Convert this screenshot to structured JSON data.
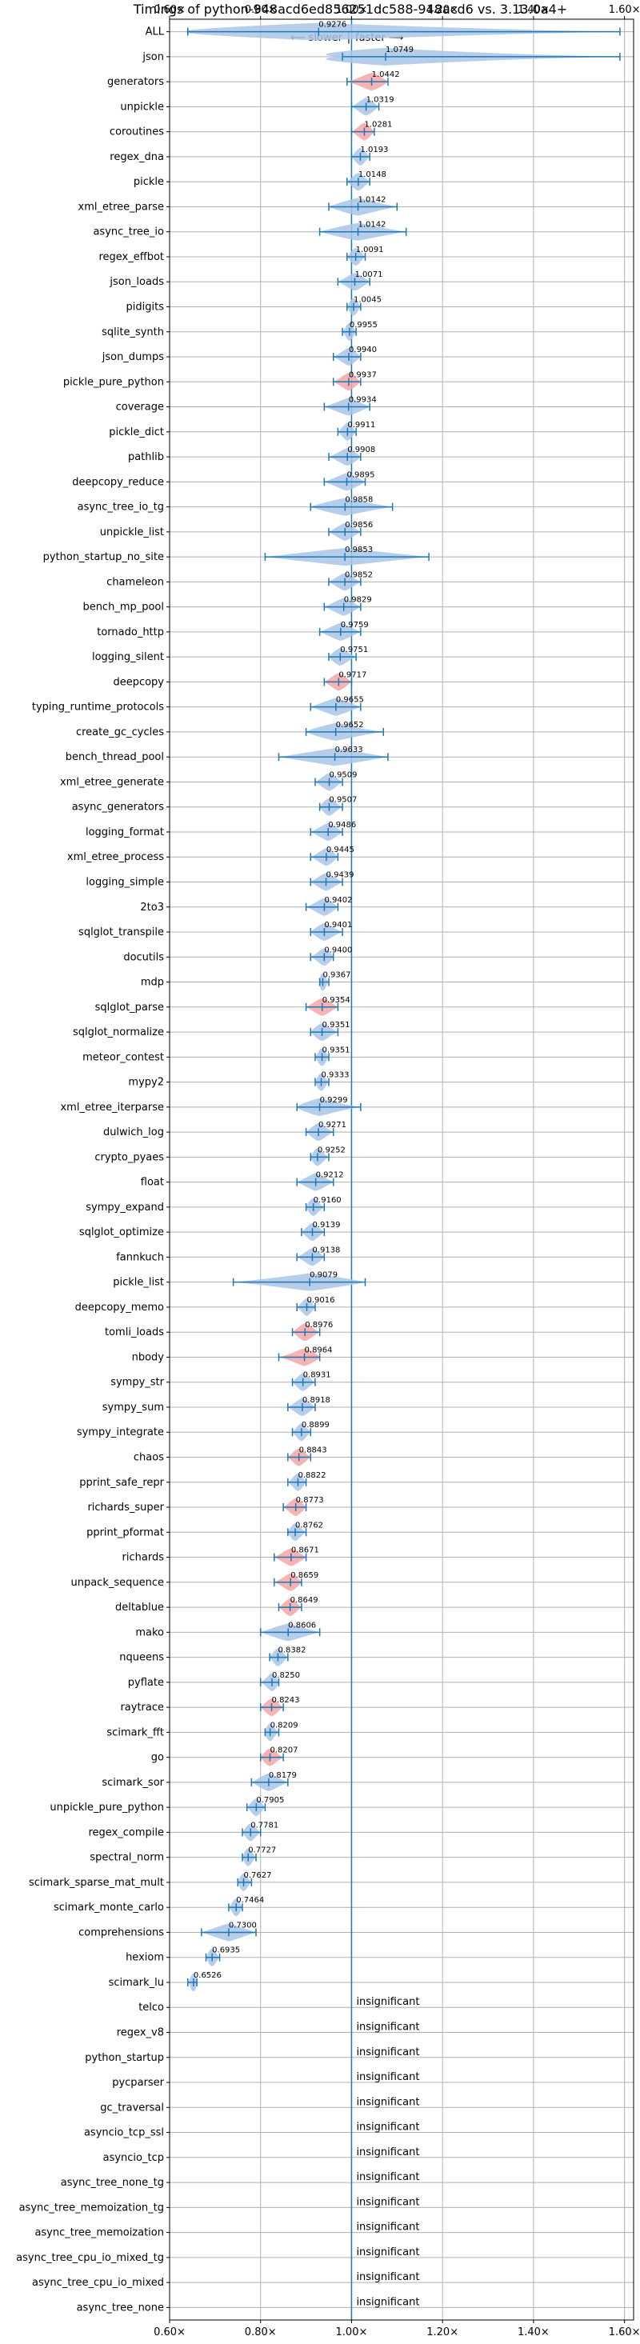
{
  "chart_data": {
    "type": "violin",
    "title": "Timings of python-948acd6ed856251dc588-948acd6 vs. 3.13.0a4+",
    "direction_annotation": {
      "slower": "⟵ slower",
      "faster": "faster ⟶",
      "separator": "|"
    },
    "xlim": [
      0.6,
      1.62
    ],
    "x_ticks": [
      {
        "value": 0.6,
        "label": "0.60×"
      },
      {
        "value": 0.8,
        "label": "0.80×"
      },
      {
        "value": 1.0,
        "label": "1.00×"
      },
      {
        "value": 1.2,
        "label": "1.20×"
      },
      {
        "value": 1.4,
        "label": "1.40×"
      },
      {
        "value": 1.6,
        "label": "1.60×"
      }
    ],
    "reference_line": 1.0,
    "grid": true,
    "colors": {
      "violin": "#a9c6e6",
      "highlight": "#f4a6a6",
      "line": "#1f77b4"
    },
    "insignificant_label": "insignificant",
    "benchmarks": [
      {
        "name": "ALL",
        "value": "0.9276",
        "x": 0.9276,
        "min": 0.64,
        "max": 1.59,
        "highlight": false
      },
      {
        "name": "json",
        "value": "1.0749",
        "x": 1.0749,
        "min": 0.98,
        "max": 1.59,
        "highlight": false
      },
      {
        "name": "generators",
        "value": "1.0442",
        "x": 1.0442,
        "min": 0.99,
        "max": 1.08,
        "highlight": true
      },
      {
        "name": "unpickle",
        "value": "1.0319",
        "x": 1.0319,
        "min": 1.0,
        "max": 1.06,
        "highlight": false
      },
      {
        "name": "coroutines",
        "value": "1.0281",
        "x": 1.0281,
        "min": 1.0,
        "max": 1.05,
        "highlight": true
      },
      {
        "name": "regex_dna",
        "value": "1.0193",
        "x": 1.0193,
        "min": 1.0,
        "max": 1.04,
        "highlight": false
      },
      {
        "name": "pickle",
        "value": "1.0148",
        "x": 1.0148,
        "min": 0.99,
        "max": 1.04,
        "highlight": false
      },
      {
        "name": "xml_etree_parse",
        "value": "1.0142",
        "x": 1.0142,
        "min": 0.95,
        "max": 1.1,
        "highlight": false
      },
      {
        "name": "async_tree_io",
        "value": "1.0142",
        "x": 1.0142,
        "min": 0.93,
        "max": 1.12,
        "highlight": false
      },
      {
        "name": "regex_effbot",
        "value": "1.0091",
        "x": 1.0091,
        "min": 0.99,
        "max": 1.03,
        "highlight": false
      },
      {
        "name": "json_loads",
        "value": "1.0071",
        "x": 1.0071,
        "min": 0.97,
        "max": 1.04,
        "highlight": false
      },
      {
        "name": "pidigits",
        "value": "1.0045",
        "x": 1.0045,
        "min": 0.99,
        "max": 1.02,
        "highlight": false
      },
      {
        "name": "sqlite_synth",
        "value": "0.9955",
        "x": 0.9955,
        "min": 0.98,
        "max": 1.01,
        "highlight": false
      },
      {
        "name": "json_dumps",
        "value": "0.9940",
        "x": 0.994,
        "min": 0.96,
        "max": 1.02,
        "highlight": false
      },
      {
        "name": "pickle_pure_python",
        "value": "0.9937",
        "x": 0.9937,
        "min": 0.96,
        "max": 1.02,
        "highlight": true
      },
      {
        "name": "coverage",
        "value": "0.9934",
        "x": 0.9934,
        "min": 0.94,
        "max": 1.04,
        "highlight": false
      },
      {
        "name": "pickle_dict",
        "value": "0.9911",
        "x": 0.9911,
        "min": 0.97,
        "max": 1.01,
        "highlight": false
      },
      {
        "name": "pathlib",
        "value": "0.9908",
        "x": 0.9908,
        "min": 0.95,
        "max": 1.02,
        "highlight": false
      },
      {
        "name": "deepcopy_reduce",
        "value": "0.9895",
        "x": 0.9895,
        "min": 0.94,
        "max": 1.03,
        "highlight": false
      },
      {
        "name": "async_tree_io_tg",
        "value": "0.9858",
        "x": 0.9858,
        "min": 0.91,
        "max": 1.09,
        "highlight": false
      },
      {
        "name": "unpickle_list",
        "value": "0.9856",
        "x": 0.9856,
        "min": 0.95,
        "max": 1.02,
        "highlight": false
      },
      {
        "name": "python_startup_no_site",
        "value": "0.9853",
        "x": 0.9853,
        "min": 0.81,
        "max": 1.17,
        "highlight": false
      },
      {
        "name": "chameleon",
        "value": "0.9852",
        "x": 0.9852,
        "min": 0.95,
        "max": 1.02,
        "highlight": false
      },
      {
        "name": "bench_mp_pool",
        "value": "0.9829",
        "x": 0.9829,
        "min": 0.94,
        "max": 1.02,
        "highlight": false
      },
      {
        "name": "tornado_http",
        "value": "0.9759",
        "x": 0.9759,
        "min": 0.93,
        "max": 1.02,
        "highlight": false
      },
      {
        "name": "logging_silent",
        "value": "0.9751",
        "x": 0.9751,
        "min": 0.95,
        "max": 1.01,
        "highlight": false
      },
      {
        "name": "deepcopy",
        "value": "0.9717",
        "x": 0.9717,
        "min": 0.94,
        "max": 1.0,
        "highlight": true
      },
      {
        "name": "typing_runtime_protocols",
        "value": "0.9655",
        "x": 0.9655,
        "min": 0.91,
        "max": 1.02,
        "highlight": false
      },
      {
        "name": "create_gc_cycles",
        "value": "0.9652",
        "x": 0.9652,
        "min": 0.9,
        "max": 1.07,
        "highlight": false
      },
      {
        "name": "bench_thread_pool",
        "value": "0.9633",
        "x": 0.9633,
        "min": 0.84,
        "max": 1.08,
        "highlight": false
      },
      {
        "name": "xml_etree_generate",
        "value": "0.9509",
        "x": 0.9509,
        "min": 0.92,
        "max": 0.98,
        "highlight": false
      },
      {
        "name": "async_generators",
        "value": "0.9507",
        "x": 0.9507,
        "min": 0.93,
        "max": 0.98,
        "highlight": false
      },
      {
        "name": "logging_format",
        "value": "0.9486",
        "x": 0.9486,
        "min": 0.91,
        "max": 0.98,
        "highlight": false
      },
      {
        "name": "xml_etree_process",
        "value": "0.9445",
        "x": 0.9445,
        "min": 0.91,
        "max": 0.97,
        "highlight": false
      },
      {
        "name": "logging_simple",
        "value": "0.9439",
        "x": 0.9439,
        "min": 0.91,
        "max": 0.98,
        "highlight": false
      },
      {
        "name": "2to3",
        "value": "0.9402",
        "x": 0.9402,
        "min": 0.9,
        "max": 0.97,
        "highlight": false
      },
      {
        "name": "sqlglot_transpile",
        "value": "0.9401",
        "x": 0.9401,
        "min": 0.91,
        "max": 0.98,
        "highlight": false
      },
      {
        "name": "docutils",
        "value": "0.9400",
        "x": 0.94,
        "min": 0.91,
        "max": 0.96,
        "highlight": false
      },
      {
        "name": "mdp",
        "value": "0.9367",
        "x": 0.9367,
        "min": 0.93,
        "max": 0.95,
        "highlight": false
      },
      {
        "name": "sqlglot_parse",
        "value": "0.9354",
        "x": 0.9354,
        "min": 0.9,
        "max": 0.97,
        "highlight": true
      },
      {
        "name": "sqlglot_normalize",
        "value": "0.9351",
        "x": 0.9351,
        "min": 0.91,
        "max": 0.97,
        "highlight": false
      },
      {
        "name": "meteor_contest",
        "value": "0.9351",
        "x": 0.9351,
        "min": 0.92,
        "max": 0.95,
        "highlight": false
      },
      {
        "name": "mypy2",
        "value": "0.9333",
        "x": 0.9333,
        "min": 0.92,
        "max": 0.95,
        "highlight": false
      },
      {
        "name": "xml_etree_iterparse",
        "value": "0.9299",
        "x": 0.9299,
        "min": 0.88,
        "max": 1.02,
        "highlight": false
      },
      {
        "name": "dulwich_log",
        "value": "0.9271",
        "x": 0.9271,
        "min": 0.9,
        "max": 0.96,
        "highlight": false
      },
      {
        "name": "crypto_pyaes",
        "value": "0.9252",
        "x": 0.9252,
        "min": 0.91,
        "max": 0.95,
        "highlight": false
      },
      {
        "name": "float",
        "value": "0.9212",
        "x": 0.9212,
        "min": 0.88,
        "max": 0.96,
        "highlight": false
      },
      {
        "name": "sympy_expand",
        "value": "0.9160",
        "x": 0.916,
        "min": 0.9,
        "max": 0.94,
        "highlight": false
      },
      {
        "name": "sqlglot_optimize",
        "value": "0.9139",
        "x": 0.9139,
        "min": 0.89,
        "max": 0.94,
        "highlight": false
      },
      {
        "name": "fannkuch",
        "value": "0.9138",
        "x": 0.9138,
        "min": 0.88,
        "max": 0.94,
        "highlight": false
      },
      {
        "name": "pickle_list",
        "value": "0.9079",
        "x": 0.9079,
        "min": 0.74,
        "max": 1.03,
        "highlight": false
      },
      {
        "name": "deepcopy_memo",
        "value": "0.9016",
        "x": 0.9016,
        "min": 0.88,
        "max": 0.92,
        "highlight": false
      },
      {
        "name": "tomli_loads",
        "value": "0.8976",
        "x": 0.8976,
        "min": 0.87,
        "max": 0.93,
        "highlight": true
      },
      {
        "name": "nbody",
        "value": "0.8964",
        "x": 0.8964,
        "min": 0.84,
        "max": 0.93,
        "highlight": true
      },
      {
        "name": "sympy_str",
        "value": "0.8931",
        "x": 0.8931,
        "min": 0.87,
        "max": 0.92,
        "highlight": false
      },
      {
        "name": "sympy_sum",
        "value": "0.8918",
        "x": 0.8918,
        "min": 0.86,
        "max": 0.92,
        "highlight": false
      },
      {
        "name": "sympy_integrate",
        "value": "0.8899",
        "x": 0.8899,
        "min": 0.87,
        "max": 0.91,
        "highlight": false
      },
      {
        "name": "chaos",
        "value": "0.8843",
        "x": 0.8843,
        "min": 0.86,
        "max": 0.91,
        "highlight": true
      },
      {
        "name": "pprint_safe_repr",
        "value": "0.8822",
        "x": 0.8822,
        "min": 0.86,
        "max": 0.9,
        "highlight": false
      },
      {
        "name": "richards_super",
        "value": "0.8773",
        "x": 0.8773,
        "min": 0.85,
        "max": 0.9,
        "highlight": true
      },
      {
        "name": "pprint_pformat",
        "value": "0.8762",
        "x": 0.8762,
        "min": 0.86,
        "max": 0.9,
        "highlight": false
      },
      {
        "name": "richards",
        "value": "0.8671",
        "x": 0.8671,
        "min": 0.83,
        "max": 0.9,
        "highlight": true
      },
      {
        "name": "unpack_sequence",
        "value": "0.8659",
        "x": 0.8659,
        "min": 0.83,
        "max": 0.89,
        "highlight": true
      },
      {
        "name": "deltablue",
        "value": "0.8649",
        "x": 0.8649,
        "min": 0.84,
        "max": 0.89,
        "highlight": true
      },
      {
        "name": "mako",
        "value": "0.8606",
        "x": 0.8606,
        "min": 0.8,
        "max": 0.93,
        "highlight": false
      },
      {
        "name": "nqueens",
        "value": "0.8382",
        "x": 0.8382,
        "min": 0.82,
        "max": 0.86,
        "highlight": false
      },
      {
        "name": "pyflate",
        "value": "0.8250",
        "x": 0.825,
        "min": 0.8,
        "max": 0.84,
        "highlight": false
      },
      {
        "name": "raytrace",
        "value": "0.8243",
        "x": 0.8243,
        "min": 0.8,
        "max": 0.85,
        "highlight": true
      },
      {
        "name": "scimark_fft",
        "value": "0.8209",
        "x": 0.8209,
        "min": 0.81,
        "max": 0.84,
        "highlight": false
      },
      {
        "name": "go",
        "value": "0.8207",
        "x": 0.8207,
        "min": 0.8,
        "max": 0.85,
        "highlight": true
      },
      {
        "name": "scimark_sor",
        "value": "0.8179",
        "x": 0.8179,
        "min": 0.78,
        "max": 0.86,
        "highlight": false
      },
      {
        "name": "unpickle_pure_python",
        "value": "0.7905",
        "x": 0.7905,
        "min": 0.77,
        "max": 0.81,
        "highlight": false
      },
      {
        "name": "regex_compile",
        "value": "0.7781",
        "x": 0.7781,
        "min": 0.76,
        "max": 0.8,
        "highlight": false
      },
      {
        "name": "spectral_norm",
        "value": "0.7727",
        "x": 0.7727,
        "min": 0.76,
        "max": 0.79,
        "highlight": false
      },
      {
        "name": "scimark_sparse_mat_mult",
        "value": "0.7627",
        "x": 0.7627,
        "min": 0.75,
        "max": 0.78,
        "highlight": false
      },
      {
        "name": "scimark_monte_carlo",
        "value": "0.7464",
        "x": 0.7464,
        "min": 0.73,
        "max": 0.76,
        "highlight": false
      },
      {
        "name": "comprehensions",
        "value": "0.7300",
        "x": 0.73,
        "min": 0.67,
        "max": 0.79,
        "highlight": false
      },
      {
        "name": "hexiom",
        "value": "0.6935",
        "x": 0.6935,
        "min": 0.68,
        "max": 0.71,
        "highlight": false
      },
      {
        "name": "scimark_lu",
        "value": "0.6526",
        "x": 0.6526,
        "min": 0.64,
        "max": 0.66,
        "highlight": false
      },
      {
        "name": "telco",
        "insignificant": true
      },
      {
        "name": "regex_v8",
        "insignificant": true
      },
      {
        "name": "python_startup",
        "insignificant": true
      },
      {
        "name": "pycparser",
        "insignificant": true
      },
      {
        "name": "gc_traversal",
        "insignificant": true
      },
      {
        "name": "asyncio_tcp_ssl",
        "insignificant": true
      },
      {
        "name": "asyncio_tcp",
        "insignificant": true
      },
      {
        "name": "async_tree_none_tg",
        "insignificant": true
      },
      {
        "name": "async_tree_memoization_tg",
        "insignificant": true
      },
      {
        "name": "async_tree_memoization",
        "insignificant": true
      },
      {
        "name": "async_tree_cpu_io_mixed_tg",
        "insignificant": true
      },
      {
        "name": "async_tree_cpu_io_mixed",
        "insignificant": true
      },
      {
        "name": "async_tree_none",
        "insignificant": true
      }
    ]
  }
}
